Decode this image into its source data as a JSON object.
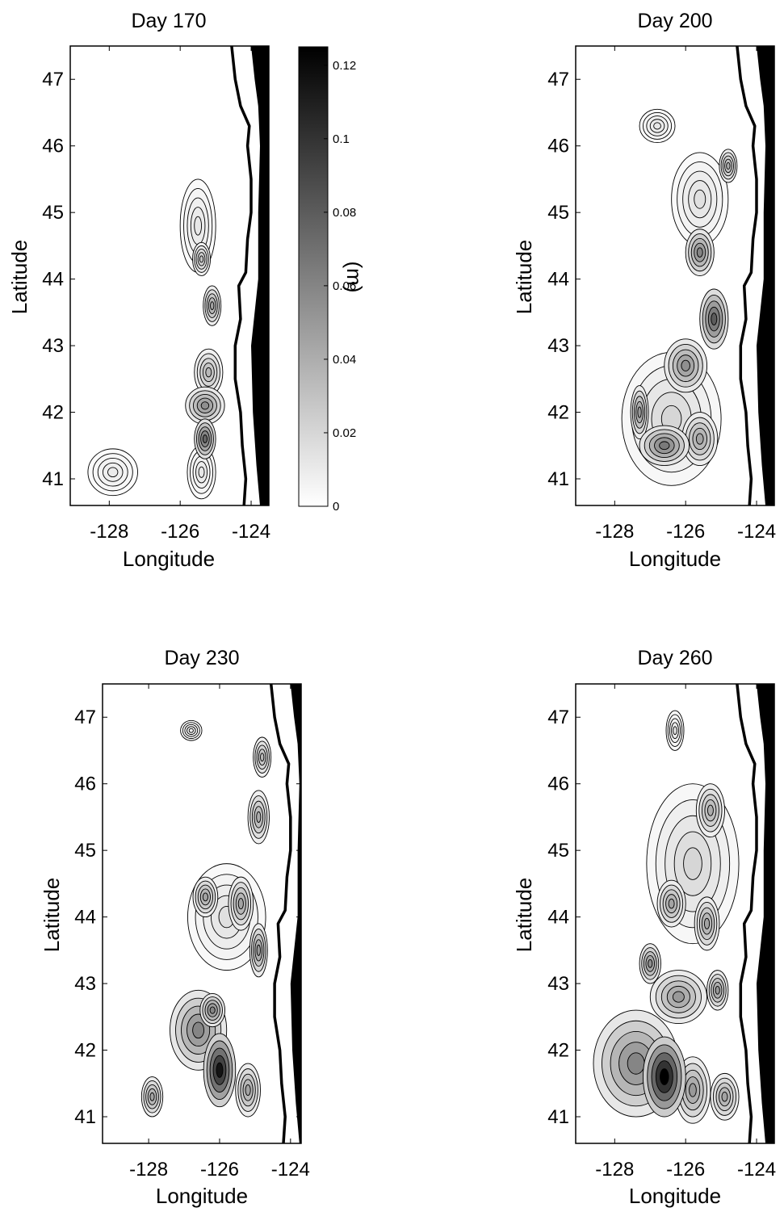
{
  "figure": {
    "colorbar": {
      "ticks": [
        "0.12",
        "0.1",
        "0.08",
        "0.06",
        "0.04",
        "0.02",
        "0"
      ],
      "values": [
        0.12,
        0.1,
        0.08,
        0.06,
        0.04,
        0.02,
        0
      ],
      "min": 0,
      "max": 0.125,
      "label": "(m)",
      "colormap": [
        "#ffffff",
        "#000000"
      ]
    },
    "axes": {
      "xticks": [
        "-128",
        "-126",
        "-124"
      ],
      "xtick_values": [
        -128,
        -126,
        -124
      ],
      "yticks": [
        "47",
        "46",
        "45",
        "44",
        "43",
        "42",
        "41"
      ],
      "ytick_values": [
        47,
        46,
        45,
        44,
        43,
        42,
        41
      ],
      "xlabel": "Longitude",
      "ylabel": "Latitude",
      "xlim": [
        -129.1,
        -123.5
      ],
      "ylim": [
        40.6,
        47.5
      ]
    },
    "panels": [
      {
        "title": "Day 170",
        "xlim": [
          -129.1,
          -123.5
        ],
        "show_ylabel": true,
        "blobs": [
          {
            "lon": -125.3,
            "lat": 41.6,
            "rx": 0.3,
            "ry": 0.3,
            "level": 0.075
          },
          {
            "lon": -125.3,
            "lat": 42.1,
            "rx": 0.55,
            "ry": 0.28,
            "level": 0.055
          },
          {
            "lon": -125.2,
            "lat": 42.6,
            "rx": 0.4,
            "ry": 0.35,
            "level": 0.035
          },
          {
            "lon": -125.1,
            "lat": 43.6,
            "rx": 0.25,
            "ry": 0.3,
            "level": 0.045
          },
          {
            "lon": -125.4,
            "lat": 44.3,
            "rx": 0.25,
            "ry": 0.25,
            "level": 0.03
          },
          {
            "lon": -125.5,
            "lat": 44.8,
            "rx": 0.5,
            "ry": 0.7,
            "level": 0.012
          },
          {
            "lon": -127.9,
            "lat": 41.1,
            "rx": 0.7,
            "ry": 0.35,
            "level": 0.01
          },
          {
            "lon": -125.4,
            "lat": 41.1,
            "rx": 0.4,
            "ry": 0.4,
            "level": 0.012
          }
        ]
      },
      {
        "title": "Day 200",
        "xlim": [
          -129.1,
          -123.5
        ],
        "show_ylabel": true,
        "blobs": [
          {
            "lon": -125.2,
            "lat": 43.4,
            "rx": 0.4,
            "ry": 0.45,
            "level": 0.08
          },
          {
            "lon": -125.6,
            "lat": 44.4,
            "rx": 0.4,
            "ry": 0.35,
            "level": 0.06
          },
          {
            "lon": -126.6,
            "lat": 41.5,
            "rx": 0.7,
            "ry": 0.3,
            "level": 0.065
          },
          {
            "lon": -126.0,
            "lat": 42.7,
            "rx": 0.6,
            "ry": 0.4,
            "level": 0.055
          },
          {
            "lon": -127.3,
            "lat": 42.0,
            "rx": 0.25,
            "ry": 0.4,
            "level": 0.05
          },
          {
            "lon": -125.6,
            "lat": 41.6,
            "rx": 0.5,
            "ry": 0.4,
            "level": 0.045
          },
          {
            "lon": -124.8,
            "lat": 45.7,
            "rx": 0.25,
            "ry": 0.25,
            "level": 0.04
          },
          {
            "lon": -126.8,
            "lat": 46.3,
            "rx": 0.5,
            "ry": 0.25,
            "level": 0.012
          },
          {
            "lon": -125.6,
            "lat": 45.2,
            "rx": 0.8,
            "ry": 0.7,
            "level": 0.015
          },
          {
            "lon": -126.4,
            "lat": 41.9,
            "rx": 1.4,
            "ry": 1.0,
            "level": 0.02
          }
        ]
      },
      {
        "title": "Day 230",
        "xlim": [
          -129.3,
          -123.7
        ],
        "show_ylabel": true,
        "blobs": [
          {
            "lon": -126.0,
            "lat": 41.7,
            "rx": 0.45,
            "ry": 0.55,
            "level": 0.115
          },
          {
            "lon": -126.6,
            "lat": 42.3,
            "rx": 0.8,
            "ry": 0.6,
            "level": 0.06
          },
          {
            "lon": -126.2,
            "lat": 42.6,
            "rx": 0.35,
            "ry": 0.25,
            "level": 0.06
          },
          {
            "lon": -127.9,
            "lat": 41.3,
            "rx": 0.3,
            "ry": 0.3,
            "level": 0.045
          },
          {
            "lon": -125.2,
            "lat": 41.4,
            "rx": 0.35,
            "ry": 0.4,
            "level": 0.045
          },
          {
            "lon": -124.9,
            "lat": 43.5,
            "rx": 0.25,
            "ry": 0.4,
            "level": 0.05
          },
          {
            "lon": -126.4,
            "lat": 44.3,
            "rx": 0.35,
            "ry": 0.3,
            "level": 0.045
          },
          {
            "lon": -125.4,
            "lat": 44.2,
            "rx": 0.35,
            "ry": 0.4,
            "level": 0.045
          },
          {
            "lon": -124.9,
            "lat": 45.5,
            "rx": 0.3,
            "ry": 0.4,
            "level": 0.04
          },
          {
            "lon": -124.8,
            "lat": 46.4,
            "rx": 0.25,
            "ry": 0.3,
            "level": 0.035
          },
          {
            "lon": -125.8,
            "lat": 44.0,
            "rx": 1.1,
            "ry": 0.8,
            "level": 0.015
          },
          {
            "lon": -126.8,
            "lat": 46.8,
            "rx": 0.3,
            "ry": 0.15,
            "level": 0.01
          }
        ]
      },
      {
        "title": "Day 260",
        "xlim": [
          -129.1,
          -123.5
        ],
        "show_ylabel": true,
        "blobs": [
          {
            "lon": -126.6,
            "lat": 41.6,
            "rx": 0.6,
            "ry": 0.6,
            "level": 0.125
          },
          {
            "lon": -127.4,
            "lat": 41.8,
            "rx": 1.2,
            "ry": 0.8,
            "level": 0.06
          },
          {
            "lon": -125.8,
            "lat": 41.4,
            "rx": 0.5,
            "ry": 0.5,
            "level": 0.05
          },
          {
            "lon": -124.9,
            "lat": 41.3,
            "rx": 0.4,
            "ry": 0.35,
            "level": 0.045
          },
          {
            "lon": -127.0,
            "lat": 43.3,
            "rx": 0.3,
            "ry": 0.3,
            "level": 0.055
          },
          {
            "lon": -126.2,
            "lat": 42.8,
            "rx": 0.8,
            "ry": 0.4,
            "level": 0.05
          },
          {
            "lon": -125.1,
            "lat": 42.9,
            "rx": 0.3,
            "ry": 0.3,
            "level": 0.05
          },
          {
            "lon": -126.4,
            "lat": 44.2,
            "rx": 0.4,
            "ry": 0.35,
            "level": 0.045
          },
          {
            "lon": -125.4,
            "lat": 43.9,
            "rx": 0.35,
            "ry": 0.4,
            "level": 0.045
          },
          {
            "lon": -125.3,
            "lat": 45.6,
            "rx": 0.4,
            "ry": 0.4,
            "level": 0.04
          },
          {
            "lon": -125.8,
            "lat": 44.8,
            "rx": 1.3,
            "ry": 1.2,
            "level": 0.02
          },
          {
            "lon": -126.3,
            "lat": 46.8,
            "rx": 0.25,
            "ry": 0.3,
            "level": 0.012
          }
        ]
      }
    ]
  }
}
